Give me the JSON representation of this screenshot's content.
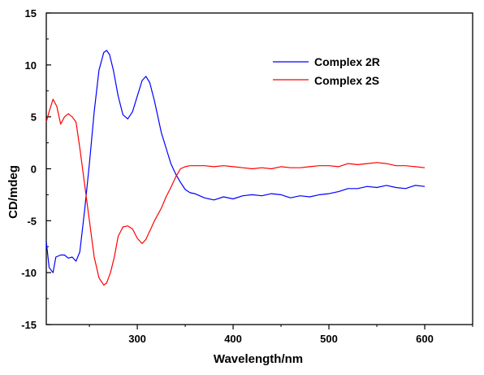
{
  "chart_data": {
    "type": "line",
    "title": "",
    "xlabel": "Wavelength/nm",
    "ylabel": "CD/mdeg",
    "xlim": [
      205,
      650
    ],
    "ylim": [
      -15,
      15
    ],
    "x_ticks": [
      300,
      400,
      500,
      600
    ],
    "y_ticks": [
      15,
      10,
      5,
      0,
      -5,
      -10,
      -15
    ],
    "x_tick_labels": [
      "300",
      "400",
      "500",
      "600"
    ],
    "y_tick_labels": [
      "15",
      "10",
      "5",
      "0",
      "-5",
      "-10",
      "-15"
    ],
    "grid": false,
    "legend_position": "top-right",
    "series": [
      {
        "name": "Complex 2R",
        "color": "#0000ff",
        "x": [
          205,
          208,
          212,
          215,
          220,
          224,
          228,
          232,
          236,
          240,
          245,
          250,
          255,
          260,
          265,
          268,
          271,
          275,
          280,
          285,
          290,
          295,
          300,
          305,
          309,
          313,
          318,
          325,
          330,
          335,
          340,
          345,
          350,
          355,
          360,
          370,
          380,
          390,
          400,
          410,
          420,
          430,
          440,
          450,
          460,
          470,
          480,
          490,
          500,
          510,
          520,
          530,
          540,
          550,
          560,
          570,
          580,
          590,
          600
        ],
        "y": [
          -7,
          -9.5,
          -10,
          -8.5,
          -8.3,
          -8.3,
          -8.6,
          -8.5,
          -8.9,
          -8,
          -4,
          0.5,
          5.5,
          9.5,
          11.2,
          11.4,
          11,
          9.5,
          7,
          5.2,
          4.8,
          5.5,
          7,
          8.5,
          8.9,
          8.3,
          6.5,
          3.5,
          2,
          0.5,
          -0.5,
          -1.3,
          -2,
          -2.3,
          -2.4,
          -2.8,
          -3,
          -2.7,
          -2.9,
          -2.6,
          -2.5,
          -2.6,
          -2.4,
          -2.5,
          -2.8,
          -2.6,
          -2.7,
          -2.5,
          -2.4,
          -2.2,
          -1.9,
          -1.9,
          -1.7,
          -1.8,
          -1.6,
          -1.8,
          -1.9,
          -1.6,
          -1.7
        ]
      },
      {
        "name": "Complex 2S",
        "color": "#ff0000",
        "x": [
          205,
          208,
          212,
          216,
          220,
          224,
          228,
          232,
          236,
          240,
          245,
          250,
          255,
          260,
          265,
          268,
          272,
          276,
          280,
          285,
          290,
          295,
          300,
          305,
          309,
          313,
          318,
          325,
          330,
          335,
          340,
          345,
          350,
          355,
          360,
          370,
          380,
          390,
          400,
          410,
          420,
          430,
          440,
          450,
          460,
          470,
          480,
          490,
          500,
          510,
          520,
          530,
          540,
          550,
          560,
          570,
          580,
          590,
          600
        ],
        "y": [
          4.5,
          5.5,
          6.7,
          6,
          4.3,
          5,
          5.3,
          5,
          4.5,
          2,
          -1.5,
          -5,
          -8.5,
          -10.5,
          -11.2,
          -11,
          -10,
          -8.5,
          -6.5,
          -5.6,
          -5.5,
          -5.8,
          -6.7,
          -7.2,
          -6.8,
          -6,
          -5,
          -3.8,
          -2.7,
          -1.8,
          -0.8,
          0,
          0.2,
          0.3,
          0.3,
          0.3,
          0.2,
          0.3,
          0.2,
          0.1,
          0,
          0.1,
          0,
          0.2,
          0.1,
          0.1,
          0.2,
          0.3,
          0.3,
          0.2,
          0.5,
          0.4,
          0.5,
          0.6,
          0.5,
          0.3,
          0.3,
          0.2,
          0.1
        ]
      }
    ]
  }
}
